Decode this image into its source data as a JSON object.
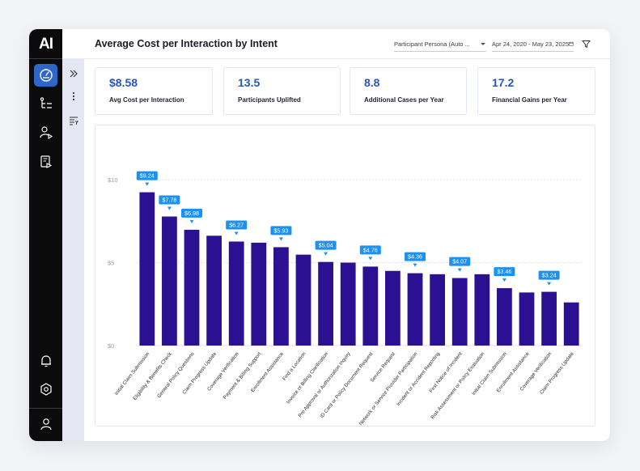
{
  "app": {
    "logo": "AI"
  },
  "header": {
    "title": "Average Cost per Interaction by Intent",
    "persona_filter": "Participant Persona (Auto ...",
    "date_range": "Apr 24, 2020 - May 23, 2025"
  },
  "rail": {
    "items": [
      {
        "name": "dashboard",
        "icon": "gauge-icon"
      },
      {
        "name": "flows",
        "icon": "flow-list-icon"
      },
      {
        "name": "persona",
        "icon": "user-play-icon"
      },
      {
        "name": "reports",
        "icon": "document-play-icon"
      }
    ],
    "bottom": [
      {
        "name": "notifications",
        "icon": "bell-icon"
      },
      {
        "name": "settings",
        "icon": "hexagon-gear-icon"
      },
      {
        "name": "profile",
        "icon": "user-icon"
      }
    ]
  },
  "kpis": [
    {
      "value": "$8.58",
      "label": "Avg Cost per Interaction"
    },
    {
      "value": "13.5",
      "label": "Participants Uplifted"
    },
    {
      "value": "8.8",
      "label": "Additional Cases per Year"
    },
    {
      "value": "17.2",
      "label": "Financial Gains per Year"
    }
  ],
  "colors": {
    "bar": "#2b1192",
    "badge": "#1e90f0",
    "accent": "#2a55b8",
    "rail": "#0b0b0b"
  },
  "chart_data": {
    "type": "bar",
    "title": "",
    "xlabel": "",
    "ylabel": "",
    "ylim": [
      0,
      10
    ],
    "yticks": [
      0,
      5,
      10
    ],
    "ytick_labels": [
      "$0",
      "$5",
      "$10"
    ],
    "categories": [
      "Initial Claim Submission",
      "Eligibility & Benefits Check",
      "General Policy Questions",
      "Claim Progress Update",
      "Coverage Verification",
      "Payment & Billing Support",
      "Enrollment Assistance",
      "Find a Location",
      "Invoice or Billing Clarification",
      "Pre Approval or Authorization Inquiry",
      "ID Card or Policy Document Request",
      "Service Request",
      "Network or Service Provider Participation",
      "Incident or Accident Reporting",
      "First Notice of Incident",
      "Risk Assessment or Policy Evaluation",
      "Initial Claim Submission",
      "Enrollment Assistance",
      "Coverage Verification",
      "Claim Progress Update"
    ],
    "values": [
      9.24,
      7.78,
      6.98,
      6.62,
      6.27,
      6.2,
      5.93,
      5.48,
      5.04,
      5.0,
      4.76,
      4.5,
      4.36,
      4.3,
      4.07,
      4.3,
      3.46,
      3.2,
      3.24,
      2.6
    ],
    "data_labels": [
      "$9.24",
      "$7.78",
      "$6.98",
      null,
      "$6.27",
      null,
      "$5.93",
      null,
      "$5.04",
      null,
      "$4.76",
      null,
      "$4.36",
      null,
      "$4.07",
      null,
      "$3.46",
      null,
      "$3.24",
      null
    ]
  }
}
